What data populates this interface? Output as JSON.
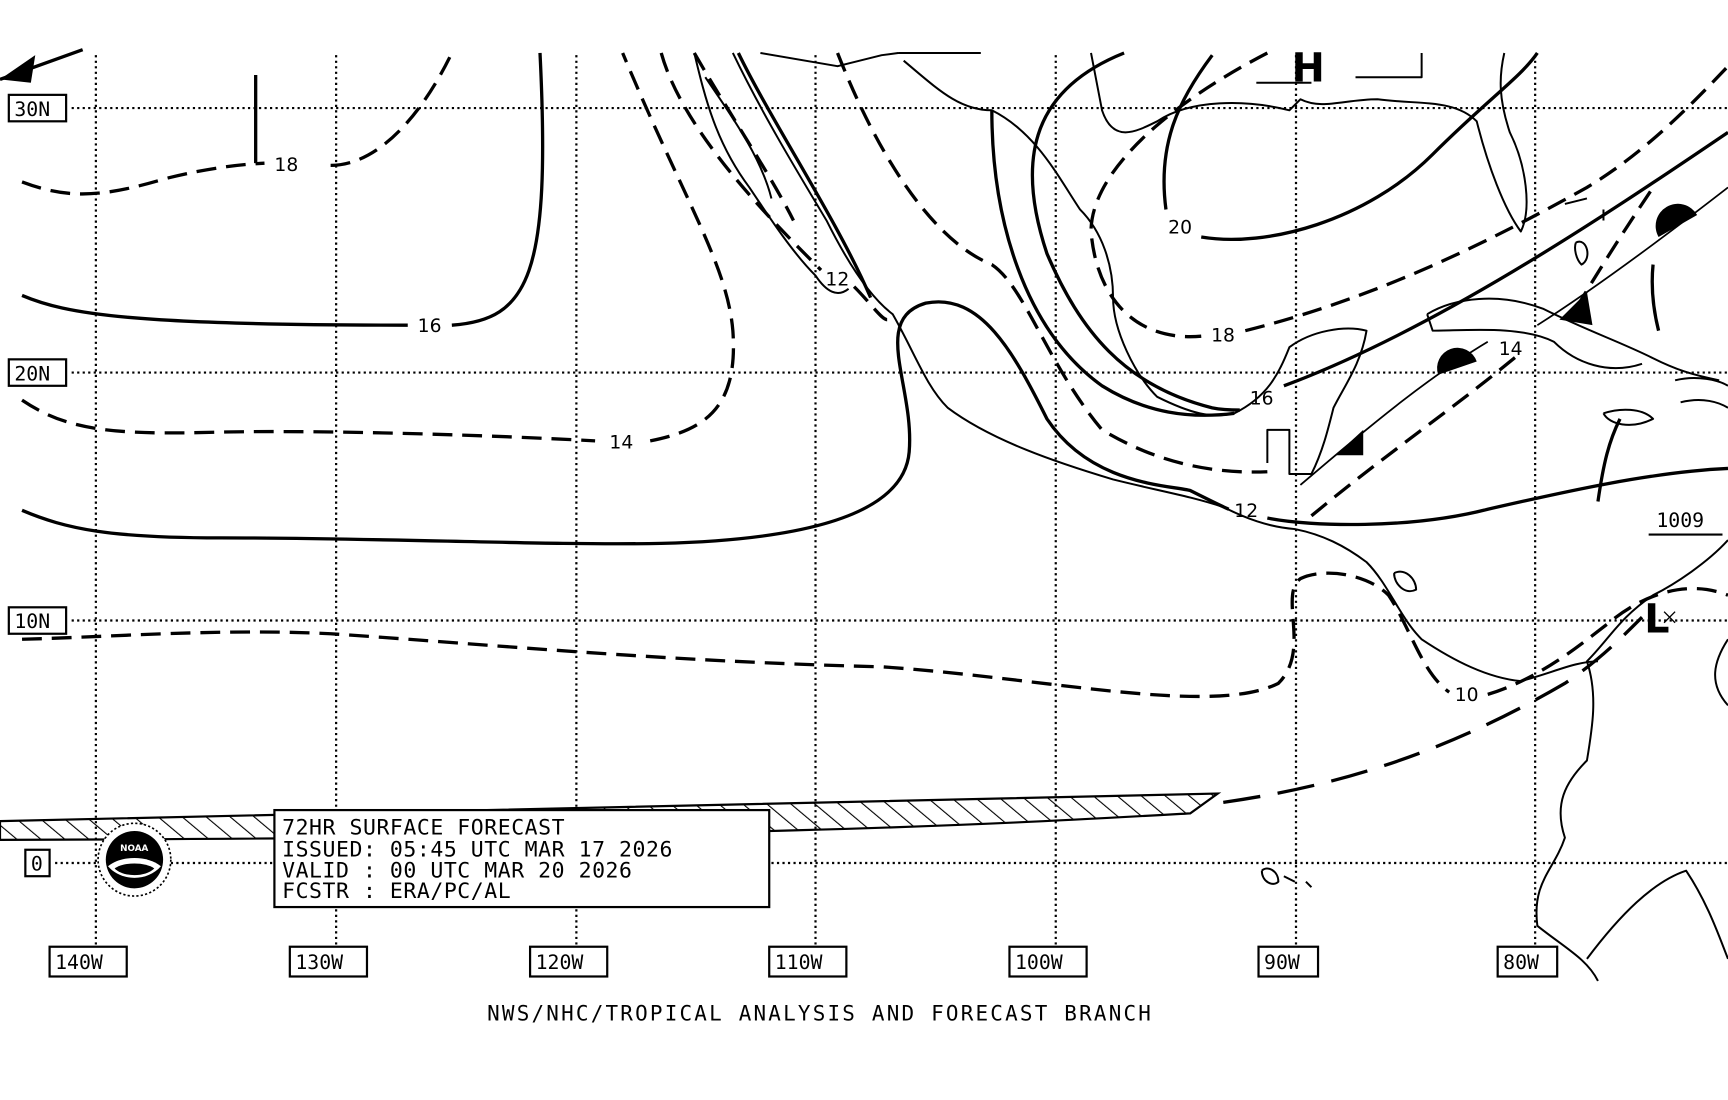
{
  "map": {
    "title_lines": [
      "72HR SURFACE FORECAST",
      "ISSUED: 05:45 UTC MAR 17 2026",
      "VALID : 00 UTC MAR 20 2026",
      "FCSTR : ERA/PC/AL"
    ],
    "footer": "NWS/NHC/TROPICAL ANALYSIS AND FORECAST BRANCH",
    "latitude_labels": [
      "30N",
      "20N",
      "10N",
      "0"
    ],
    "longitude_labels": [
      "140W",
      "130W",
      "120W",
      "110W",
      "100W",
      "90W",
      "80W"
    ],
    "isobar_labels": {
      "pacific_18": "18",
      "pacific_16": "16",
      "pacific_14": "14",
      "mexico_12": "12",
      "gulf_20": "20",
      "gulf_18": "18",
      "gulf_16": "16",
      "caribbean_14": "14",
      "central_america_12": "12",
      "central_america_10": "10"
    },
    "pressure_centers": {
      "high": "H",
      "low": "L",
      "low_pressure_value": "1009"
    },
    "logo_text": "NOAA",
    "colors": {
      "line": "#000000",
      "background": "#ffffff"
    }
  }
}
